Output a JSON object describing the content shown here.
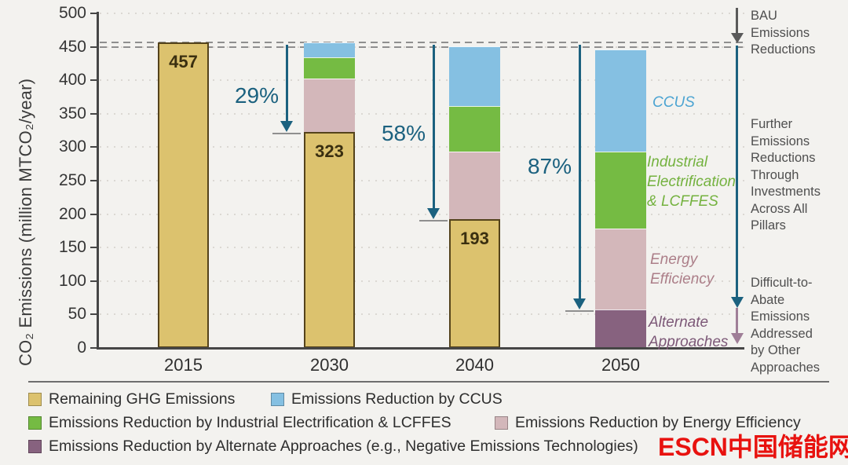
{
  "chart_data": {
    "type": "bar",
    "subtype": "stacked-bar",
    "title": "",
    "ylabel": "CO₂ Emissions (million MTCO₂/year)",
    "xlabel": "",
    "ylim": [
      0,
      500
    ],
    "ytick_step": 50,
    "grid": "dotted-horizontal",
    "categories": [
      "2015",
      "2030",
      "2040",
      "2050"
    ],
    "series": [
      {
        "key": "remaining",
        "name": "Remaining GHG Emissions",
        "color": "#DCC26E",
        "values": [
          457,
          323,
          193,
          0
        ]
      },
      {
        "key": "alternate",
        "name": "Emissions Reduction by Alternate Approaches",
        "color": "#87627F",
        "values": [
          0,
          0,
          0,
          57
        ]
      },
      {
        "key": "energy_efficiency",
        "name": "Emissions Reduction by Energy Efficiency",
        "color": "#D3B7BA",
        "values": [
          0,
          80,
          100,
          121
        ]
      },
      {
        "key": "industrial_electrification",
        "name": "Emissions Reduction by Industrial Electrification & LCFFES",
        "color": "#75BB43",
        "values": [
          0,
          31,
          69,
          115
        ]
      },
      {
        "key": "ccus",
        "name": "Emissions Reduction by CCUS",
        "color": "#85C0E2",
        "values": [
          0,
          23,
          89,
          153
        ]
      }
    ],
    "bar_value_labels": [
      "457",
      "323",
      "193",
      ""
    ],
    "bau_dashed_levels": [
      457,
      450
    ],
    "dashed_line_color": "#8F8F8F",
    "reduction_arrows": [
      {
        "category": "2030",
        "label": "29%",
        "from": 457,
        "to": 323
      },
      {
        "category": "2040",
        "label": "58%",
        "from": 457,
        "to": 193
      },
      {
        "category": "2050",
        "label": "87%",
        "from": 457,
        "to": 58
      }
    ],
    "arrow_color": "#1B617F"
  },
  "segment_labels": {
    "ccus": {
      "text": "CCUS",
      "color": "#4CA4D2"
    },
    "industrial": {
      "text": "Industrial\nElectrification\n& LCFFES",
      "color": "#74B23F"
    },
    "energy": {
      "text": "Energy\nEfficiency",
      "color": "#AC7F89"
    },
    "alternate": {
      "text": "Alternate\nApproaches",
      "color": "#7C5877"
    }
  },
  "annotations": {
    "bau": {
      "text": "BAU\nEmissions\nReductions",
      "arrow_color": "#5A5A5A"
    },
    "further": {
      "text": "Further\nEmissions\nReductions\nThrough\nInvestments\nAcross All\nPillars",
      "arrow_color": "#1B617F"
    },
    "difficult": {
      "text": "Difficult-to-\nAbate\nEmissions\nAddressed\nby Other\nApproaches",
      "arrow_color": "#9F7E97"
    }
  },
  "legend": {
    "items": [
      {
        "label": "Remaining GHG Emissions",
        "color": "#DCC26E"
      },
      {
        "label": "Emissions Reduction by CCUS",
        "color": "#85C0E2"
      },
      {
        "label": "Emissions Reduction by Industrial Electrification & LCFFES",
        "color": "#75BB43"
      },
      {
        "label": "Emissions Reduction by Energy Efficiency",
        "color": "#D3B7BA"
      },
      {
        "label": "Emissions Reduction by Alternate Approaches (e.g., Negative Emissions Technologies)",
        "color": "#87627F"
      }
    ]
  },
  "watermark": {
    "text": "ESCN中国储能网",
    "color": "#E8120F"
  }
}
